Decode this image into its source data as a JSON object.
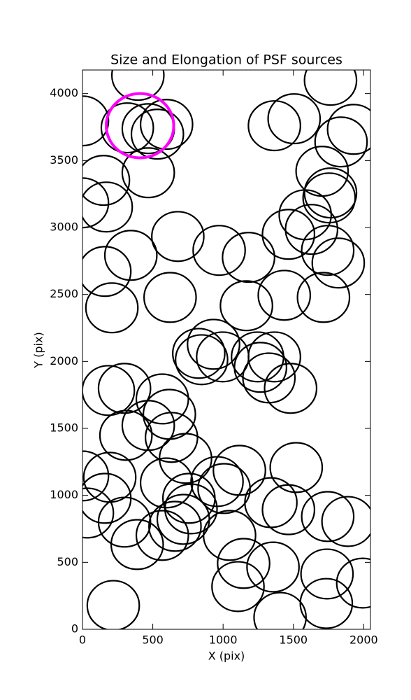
{
  "chart_data": {
    "type": "scatter",
    "title": "Size and Elongation of PSF sources",
    "x_label": "X (pix)",
    "y_label": "Y (pix)",
    "xlim": [
      0,
      2048
    ],
    "ylim": [
      0,
      4176
    ],
    "xticks": [
      0,
      500,
      1000,
      1500,
      2000
    ],
    "yticks": [
      0,
      500,
      1000,
      1500,
      2000,
      2500,
      3000,
      3500,
      4000
    ],
    "series": [
      {
        "color": "#000000",
        "radius": 185,
        "x": [
          0,
          394,
          319,
          468,
          598,
          533,
          468,
          149,
          0,
          169,
          1365,
          1505,
          1764,
          1928,
          1839,
          1704,
          1764,
          1754,
          1584,
          1629,
          1465,
          1744,
          1819,
          1714,
          1435,
          1166,
          1181,
          972,
          678,
          623,
          344,
          159,
          209,
          827,
          932,
          847,
          997,
          1245,
          1365,
          1266,
          1326,
          1480,
          184,
          299,
          568,
          618,
          309,
          468,
          633,
          733,
          598,
          957,
          1116,
          1007,
          1340,
          1520,
          1465,
          1744,
          1888,
          159,
          194,
          0,
          35,
          299,
          757,
          772,
          658,
          717,
          568,
          389,
          1046,
          1146,
          1106,
          1355,
          1405,
          1739,
          1734,
          1993,
          219
        ],
        "values": [
          3796,
          4136,
          3744,
          3738,
          3770,
          3697,
          3409,
          3352,
          3184,
          3153,
          3760,
          3812,
          4099,
          3733,
          3639,
          3420,
          3258,
          3221,
          3095,
          2986,
          2949,
          2829,
          2735,
          2478,
          2494,
          2416,
          2777,
          2829,
          2933,
          2478,
          2792,
          2672,
          2400,
          2060,
          2128,
          2013,
          2034,
          2034,
          2034,
          1956,
          1877,
          1799,
          1783,
          1799,
          1720,
          1605,
          1448,
          1522,
          1433,
          1276,
          1093,
          1103,
          1187,
          1051,
          946,
          1208,
          893,
          842,
          805,
          978,
          1135,
          1145,
          868,
          800,
          978,
          899,
          769,
          821,
          701,
          633,
          701,
          492,
          319,
          465,
          89,
          413,
          193,
          345,
          178
        ]
      },
      {
        "color": "#ff00ff",
        "radius": 240,
        "x": [
          409
        ],
        "values": [
          3760
        ]
      }
    ]
  }
}
